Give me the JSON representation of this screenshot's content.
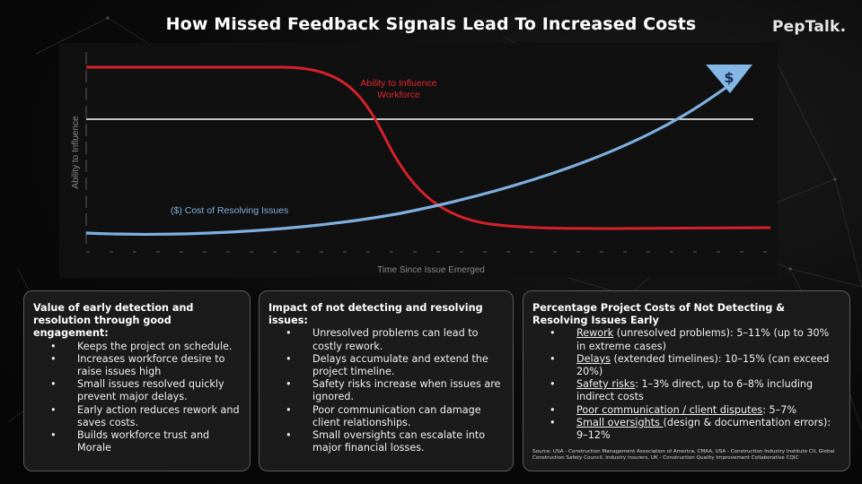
{
  "title": "How Missed Feedback Signals Lead To Increased Costs",
  "logo": "PepTalk.",
  "diagram": {
    "y_axis_label": "Ability to Influence",
    "x_axis_label": "Time Since Issue Emerged",
    "red_curve_label_line1": "Ability to Influence",
    "red_curve_label_line2": "Workforce",
    "blue_curve_label": "($) Cost of Resolving Issues",
    "dollar_icon_text": "$",
    "colors": {
      "red_curve": "#d6212b",
      "blue_curve": "#7fb0e0",
      "reference_line": "#ffffff"
    }
  },
  "cards": {
    "early": {
      "title": "Value of early detection and resolution through good engagement:",
      "items": [
        "Keeps the project on schedule.",
        "Increases workforce desire to raise issues high",
        "Small issues resolved quickly prevent major delays.",
        "Early action reduces rework and saves costs.",
        "Builds workforce trust and Morale"
      ]
    },
    "impact": {
      "title": "Impact of not detecting and resolving issues:",
      "items": [
        "Unresolved problems can lead to costly rework.",
        "Delays accumulate and extend the project timeline.",
        "Safety risks increase when issues are ignored.",
        "Poor communication can damage client relationships.",
        "Small oversights can escalate into major financial losses."
      ]
    },
    "costs": {
      "title": "Percentage Project Costs of Not Detecting & Resolving Issues Early",
      "items": [
        {
          "term": "Rework",
          "rest": " (unresolved problems): 5–11% (up to 30% in extreme cases)"
        },
        {
          "term": "Delays",
          "rest": " (extended timelines): 10–15% (can exceed 20%)"
        },
        {
          "term": "Safety risks",
          "rest": ": 1–3% direct, up to 6–8% including indirect costs"
        },
        {
          "term": "Poor communication / client disputes",
          "rest": ": 5–7%"
        },
        {
          "term": "Small oversights ",
          "rest": "(design & documentation errors): 9–12%"
        }
      ],
      "source": "Source: USA - Construction Management Association of America, CMAA, USA - Construction Industry Institute CII, Global Construction Safety Council, industry insurers, UK - Construction Quality Improvement Collaborative CQIC"
    }
  }
}
